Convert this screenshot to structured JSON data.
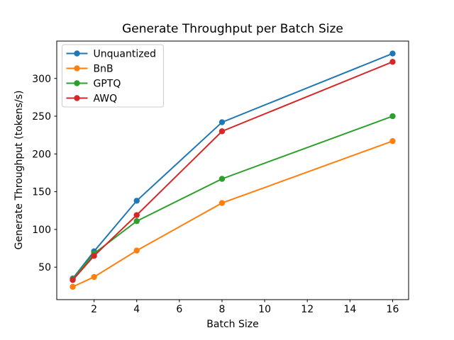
{
  "window": {
    "background": "#ffffff"
  },
  "chart_data": {
    "type": "line",
    "title": "Generate Throughput per Batch Size",
    "xlabel": "Batch Size",
    "ylabel": "Generate Throughput (tokens/s)",
    "x": [
      1,
      2,
      4,
      8,
      16
    ],
    "series": [
      {
        "name": "Unquantized",
        "color": "#1f77b4",
        "values": [
          35,
          71,
          138,
          242,
          333
        ]
      },
      {
        "name": "BnB",
        "color": "#ff7f0e",
        "values": [
          24,
          37,
          72,
          135,
          217
        ]
      },
      {
        "name": "GPTQ",
        "color": "#2ca02c",
        "values": [
          34,
          68,
          111,
          167,
          250
        ]
      },
      {
        "name": "AWQ",
        "color": "#d62728",
        "values": [
          33,
          65,
          119,
          230,
          322
        ]
      }
    ],
    "xticks": [
      2,
      4,
      6,
      8,
      10,
      12,
      14,
      16
    ],
    "yticks": [
      50,
      100,
      150,
      200,
      250,
      300
    ],
    "xlim": [
      0.25,
      16.75
    ],
    "ylim": [
      7,
      349.5
    ],
    "grid": false,
    "marker": "o",
    "legend_position": "upper left",
    "legend_border_color": "#cccccc",
    "axis_color": "#000000",
    "text_color": "#000000"
  }
}
